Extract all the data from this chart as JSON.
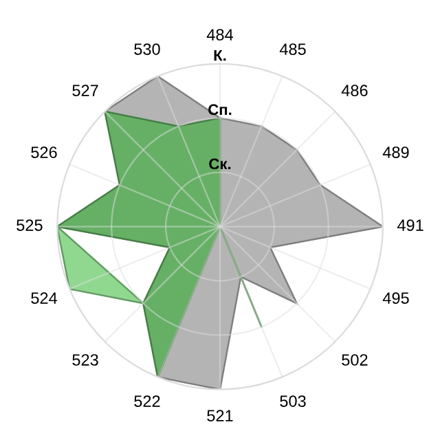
{
  "chart_data": {
    "type": "radar",
    "categories": [
      "484",
      "485",
      "486",
      "489",
      "491",
      "495",
      "502",
      "503",
      "521",
      "522",
      "523",
      "524",
      "525",
      "526",
      "527",
      "530"
    ],
    "ylim": [
      0,
      3
    ],
    "yticks": [
      {
        "value": 1,
        "label": "Ск."
      },
      {
        "value": 2,
        "label": "Сп."
      },
      {
        "value": 3,
        "label": "К."
      }
    ],
    "grid": true,
    "series": [
      {
        "color": "#b4b4b4",
        "values": [
          2,
          2,
          2,
          2,
          3,
          1,
          2,
          1,
          3,
          3,
          null,
          null,
          null,
          null,
          3,
          3
        ]
      },
      {
        "color": "#90d890",
        "values": [
          null,
          null,
          null,
          null,
          null,
          null,
          null,
          null,
          null,
          null,
          2,
          3,
          3,
          null,
          null,
          null
        ]
      },
      {
        "color": "#66b066",
        "values": [
          2,
          0,
          0,
          0,
          0,
          0,
          0,
          2,
          0,
          3,
          2,
          1,
          3,
          2,
          3,
          2
        ]
      }
    ]
  }
}
